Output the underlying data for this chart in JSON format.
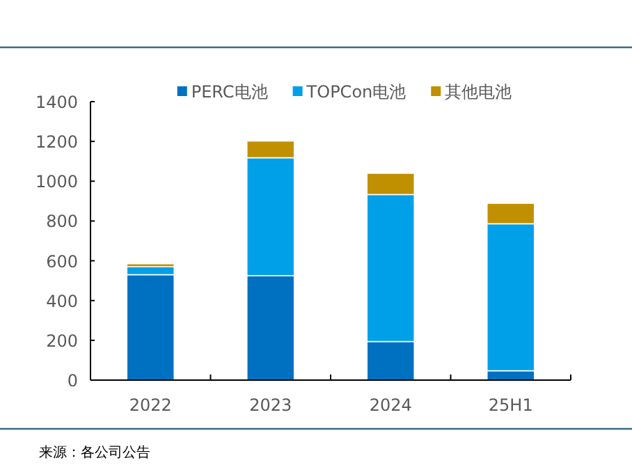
{
  "chart_data": {
    "type": "bar",
    "stacked": true,
    "legend": "top",
    "grid": false,
    "categories": [
      "2022",
      "2023",
      "2024",
      "25H1"
    ],
    "series": [
      {
        "name": "PERC电池",
        "color": "#0070c0",
        "values": [
          530,
          525,
          194,
          47
        ]
      },
      {
        "name": "TOPCon电池",
        "color": "#00a0e9",
        "values": [
          40,
          593,
          739,
          739
        ]
      },
      {
        "name": "其他电池",
        "color": "#c09000",
        "values": [
          15,
          84,
          107,
          103
        ]
      }
    ],
    "ylim": [
      0,
      1400
    ],
    "yticks": [
      0,
      200,
      400,
      600,
      800,
      1000,
      1200,
      1400
    ],
    "annotations": [
      "来源：各公司公告"
    ]
  }
}
